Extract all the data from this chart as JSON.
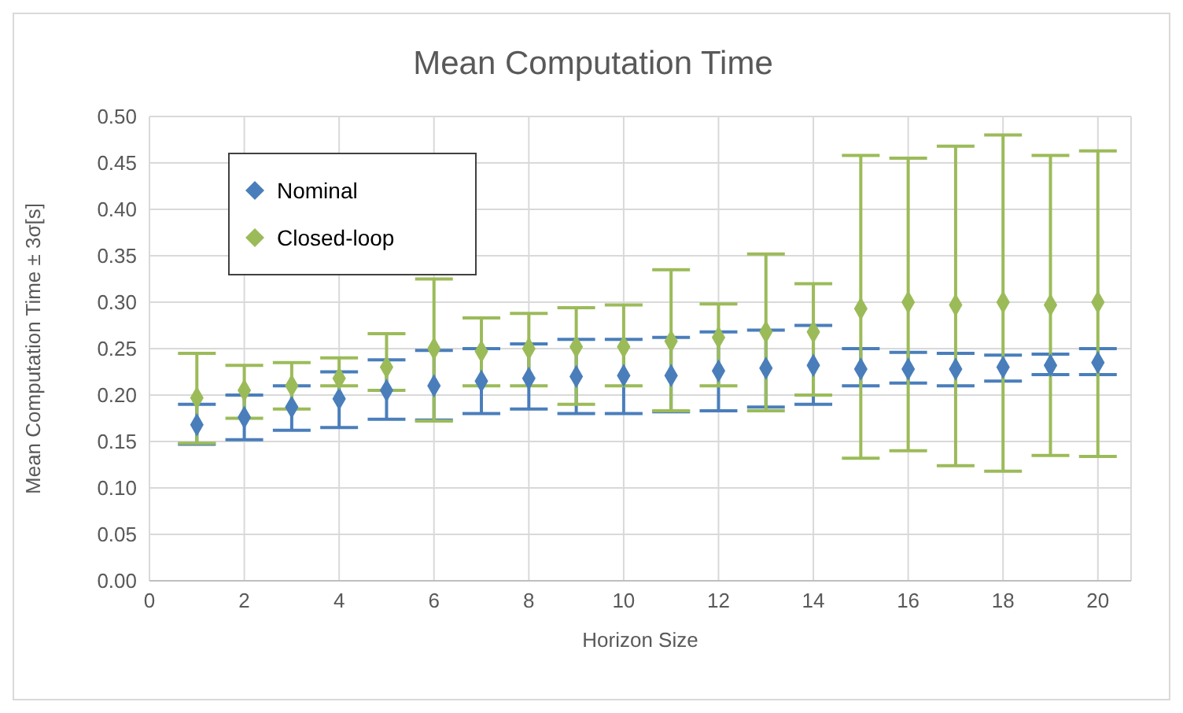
{
  "chart_data": {
    "type": "scatter",
    "title": "Mean Computation Time",
    "xlabel": "Horizon Size",
    "ylabel": "Mean Computation Time  ± 3σ[s]",
    "x": [
      1,
      2,
      3,
      4,
      5,
      6,
      7,
      8,
      9,
      10,
      11,
      12,
      13,
      14,
      15,
      16,
      17,
      18,
      19,
      20
    ],
    "series": [
      {
        "name": "Nominal",
        "color": "#4a7ebb",
        "values": [
          0.168,
          0.176,
          0.187,
          0.196,
          0.205,
          0.21,
          0.215,
          0.218,
          0.22,
          0.221,
          0.221,
          0.226,
          0.229,
          0.232,
          0.228,
          0.228,
          0.228,
          0.23,
          0.232,
          0.235
        ],
        "errors": [
          [
            0.147,
            0.19
          ],
          [
            0.152,
            0.2
          ],
          [
            0.162,
            0.21
          ],
          [
            0.165,
            0.225
          ],
          [
            0.174,
            0.238
          ],
          [
            0.173,
            0.248
          ],
          [
            0.18,
            0.25
          ],
          [
            0.185,
            0.255
          ],
          [
            0.18,
            0.26
          ],
          [
            0.18,
            0.26
          ],
          [
            0.182,
            0.262
          ],
          [
            0.183,
            0.268
          ],
          [
            0.187,
            0.27
          ],
          [
            0.19,
            0.275
          ],
          [
            0.21,
            0.25
          ],
          [
            0.213,
            0.246
          ],
          [
            0.21,
            0.245
          ],
          [
            0.215,
            0.243
          ],
          [
            0.222,
            0.244
          ],
          [
            0.222,
            0.25
          ]
        ]
      },
      {
        "name": "Closed-loop",
        "color": "#9bbb59",
        "values": [
          0.197,
          0.205,
          0.21,
          0.218,
          0.23,
          0.25,
          0.247,
          0.25,
          0.252,
          0.252,
          0.258,
          0.262,
          0.268,
          0.268,
          0.293,
          0.3,
          0.297,
          0.3,
          0.297,
          0.3
        ],
        "errors": [
          [
            0.148,
            0.245
          ],
          [
            0.175,
            0.232
          ],
          [
            0.185,
            0.235
          ],
          [
            0.21,
            0.24
          ],
          [
            0.205,
            0.266
          ],
          [
            0.172,
            0.325
          ],
          [
            0.21,
            0.283
          ],
          [
            0.21,
            0.288
          ],
          [
            0.19,
            0.294
          ],
          [
            0.21,
            0.297
          ],
          [
            0.183,
            0.335
          ],
          [
            0.21,
            0.298
          ],
          [
            0.183,
            0.352
          ],
          [
            0.2,
            0.32
          ],
          [
            0.132,
            0.458
          ],
          [
            0.14,
            0.455
          ],
          [
            0.124,
            0.468
          ],
          [
            0.118,
            0.48
          ],
          [
            0.135,
            0.458
          ],
          [
            0.134,
            0.463
          ]
        ]
      }
    ],
    "xlim": [
      0,
      20.7
    ],
    "xticks": [
      0,
      2,
      4,
      6,
      8,
      10,
      12,
      14,
      16,
      18,
      20
    ],
    "ylim": [
      0,
      0.5
    ],
    "yticks": [
      {
        "value": 0,
        "label": "0.00"
      },
      0.05,
      {
        "value": 0.1,
        "label": "0.10"
      },
      0.15,
      {
        "value": 0.2,
        "label": "0.20"
      },
      0.25,
      {
        "value": 0.3,
        "label": "0.30"
      },
      0.35,
      {
        "value": 0.4,
        "label": "0.40"
      },
      0.45,
      {
        "value": 0.5,
        "label": "0.50"
      }
    ],
    "grid": true,
    "legend": "top left",
    "marker": "diamond"
  }
}
